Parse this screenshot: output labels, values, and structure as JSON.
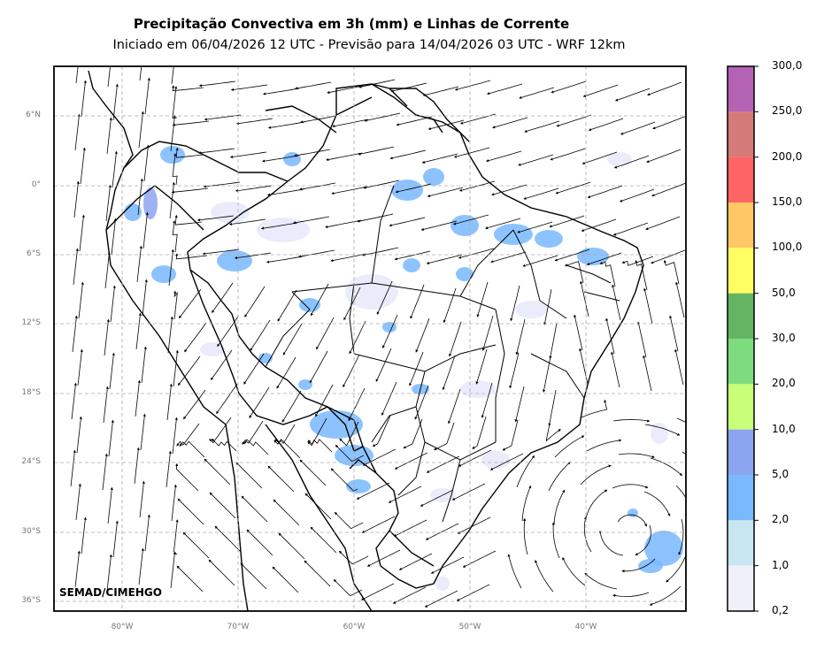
{
  "title": "Precipitação Convectiva em 3h (mm) e Linhas de Corrente",
  "subtitle": "Iniciado em 06/04/2026 12 UTC - Previsão para 14/04/2026 03 UTC - WRF 12km",
  "watermark": "SEMAD/CIMEHGO",
  "lat_labels": [
    "6°N",
    "0°",
    "6°S",
    "12°S",
    "18°S",
    "24°S",
    "30°S",
    "36°S"
  ],
  "lon_labels": [
    "80°W",
    "70°W",
    "60°W",
    "50°W",
    "40°W"
  ],
  "colorbar": {
    "labels": [
      "300,0",
      "250,0",
      "200,0",
      "150,0",
      "100,0",
      "50,0",
      "30,0",
      "20,0",
      "10,0",
      "5,0",
      "2,0",
      "1,0",
      "0,2"
    ],
    "colors": [
      "#b462b4",
      "#d47a78",
      "#ff6464",
      "#ffc864",
      "#ffff64",
      "#64b464",
      "#7ddc7d",
      "#c8ff78",
      "#8ca5f0",
      "#78b9ff",
      "#c8e6f0",
      "#f0f0fa"
    ]
  },
  "colors": {
    "precip_light": "#e6e9fb",
    "precip_mid": "#78b9ff",
    "precip_strong": "#8ca5f0"
  }
}
